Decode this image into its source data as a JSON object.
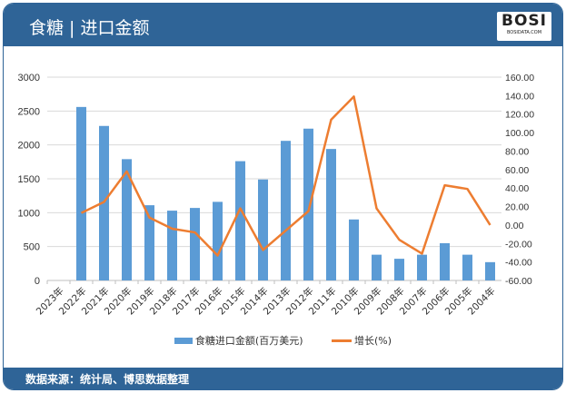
{
  "header": {
    "title": "食糖 | 进口金额",
    "logo_text": "BOSI",
    "logo_sub": "BOSIDATA.COM"
  },
  "footer": {
    "source": "数据来源：统计局、博思数据整理"
  },
  "colors": {
    "header": "#2f6497",
    "bar": "#5b9bd5",
    "line": "#ed7d31"
  },
  "chart_data": {
    "type": "bar+line",
    "categories": [
      "2023年",
      "2022年",
      "2021年",
      "2020年",
      "2019年",
      "2018年",
      "2017年",
      "2016年",
      "2015年",
      "2014年",
      "2013年",
      "2012年",
      "2011年",
      "2010年",
      "2009年",
      "2008年",
      "2007年",
      "2006年",
      "2005年",
      "2004年"
    ],
    "series": [
      {
        "name": "食糖进口金额(百万美元)",
        "type": "bar",
        "axis": "left",
        "values": [
          null,
          2560,
          2280,
          1790,
          1110,
          1030,
          1070,
          1160,
          1760,
          1490,
          2060,
          2240,
          1940,
          900,
          380,
          320,
          380,
          550,
          380,
          270
        ]
      },
      {
        "name": "增长(%)",
        "type": "line",
        "axis": "right",
        "values": [
          null,
          13,
          25,
          58,
          8,
          -4,
          -8,
          -33,
          18,
          -27,
          -6,
          15,
          114,
          139,
          18,
          -16,
          -31,
          43,
          39,
          0
        ]
      }
    ],
    "left_axis": {
      "range": [
        0,
        3000
      ],
      "ticks": [
        "0",
        "500",
        "1000",
        "1500",
        "2000",
        "2500",
        "3000"
      ]
    },
    "right_axis": {
      "range": [
        -60,
        160
      ],
      "ticks": [
        "-60.00",
        "-40.00",
        "-20.00",
        "0.00",
        "20.00",
        "40.00",
        "60.00",
        "80.00",
        "100.00",
        "120.00",
        "140.00",
        "160.00"
      ]
    },
    "grid": true,
    "legend": "bottom"
  }
}
